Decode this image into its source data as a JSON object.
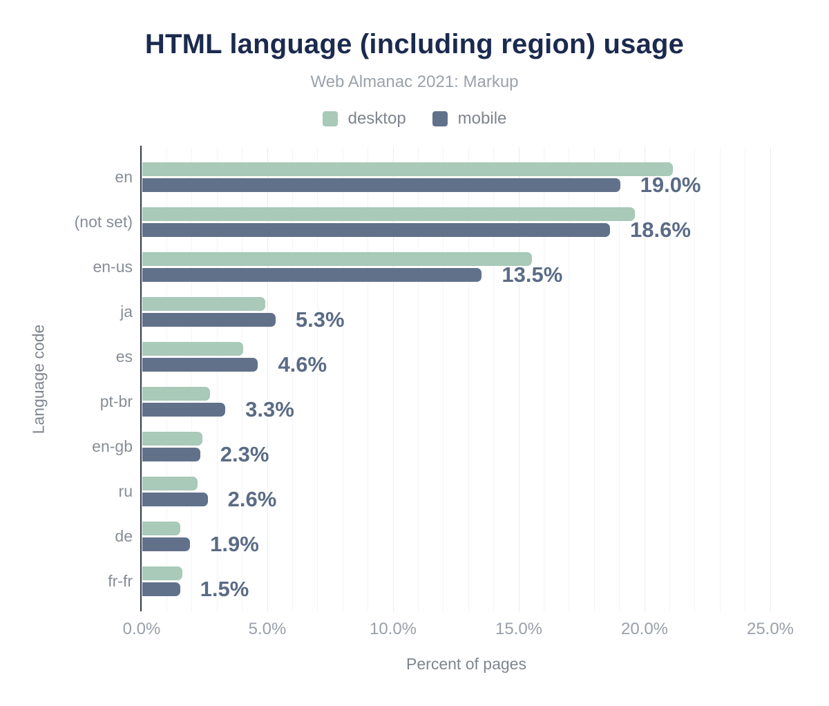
{
  "chart_data": {
    "type": "bar",
    "orientation": "horizontal",
    "title": "HTML language (including region) usage",
    "subtitle": "Web Almanac 2021: Markup",
    "xlabel": "Percent of pages",
    "ylabel": "Language code",
    "categories": [
      "en",
      "(not set)",
      "en-us",
      "ja",
      "es",
      "pt-br",
      "en-gb",
      "ru",
      "de",
      "fr-fr"
    ],
    "series": [
      {
        "name": "desktop",
        "color": "#a9c9b9",
        "values": [
          21.1,
          19.6,
          15.5,
          4.9,
          4.0,
          2.7,
          2.4,
          2.2,
          1.5,
          1.6
        ]
      },
      {
        "name": "mobile",
        "color": "#61718a",
        "values": [
          19.0,
          18.6,
          13.5,
          5.3,
          4.6,
          3.3,
          2.3,
          2.6,
          1.9,
          1.5
        ]
      }
    ],
    "value_labels": [
      "19.0%",
      "18.6%",
      "13.5%",
      "5.3%",
      "4.6%",
      "3.3%",
      "2.3%",
      "2.6%",
      "1.9%",
      "1.5%"
    ],
    "value_labels_series": "mobile",
    "xlim": [
      0,
      25.8
    ],
    "xticks": [
      0,
      5,
      10,
      15,
      20,
      25
    ],
    "xtick_labels": [
      "0.0%",
      "5.0%",
      "10.0%",
      "15.0%",
      "20.0%",
      "25.0%"
    ],
    "grid": {
      "on": true,
      "minor_every": 1,
      "major_every": 5,
      "minor_color": "#f3f4f6",
      "major_color": "#e8eaed"
    },
    "legend_position": "top"
  },
  "theme": {
    "background": "#ffffff",
    "title_color": "#1b2a4e",
    "subtitle_color": "#9aa2ab",
    "legend_text_color": "#7f858e",
    "category_label_color": "#878d96",
    "tick_label_color": "#99a0aa",
    "axis_title_color": "#7f858e",
    "value_label_color": "#5a6b85",
    "axis_line_color": "#343a43"
  }
}
